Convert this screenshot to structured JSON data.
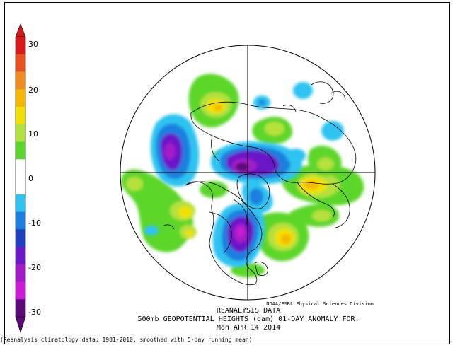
{
  "colorbar": {
    "ticks": [
      "30",
      "20",
      "10",
      "0",
      "-10",
      "-20",
      "-30"
    ],
    "colors": [
      "#d7191c",
      "#e8501f",
      "#f08c1e",
      "#f5b800",
      "#f2e100",
      "#b5e13c",
      "#5dd62c",
      "#ffffff",
      "#ffffff",
      "#2fc3f0",
      "#1f7fe0",
      "#1f3fc0",
      "#6a18c8",
      "#a31ac8",
      "#cc1ad6",
      "#5b0a78"
    ]
  },
  "credit": "NOAA/ESRL Physical Sciences Division",
  "title_lines": [
    "REANALYSIS DATA",
    "500mb GEOPOTENTIAL HEIGHTS (dam)   01-DAY ANOMALY FOR:",
    "Mon APR 14 2014"
  ],
  "footer": "(Reanalysis climatology data: 1981-2010, smoothed with 5-day running mean)",
  "map": {
    "projection": "north-polar-stereographic",
    "variable": "500mb geopotential height anomaly",
    "units": "dam"
  }
}
